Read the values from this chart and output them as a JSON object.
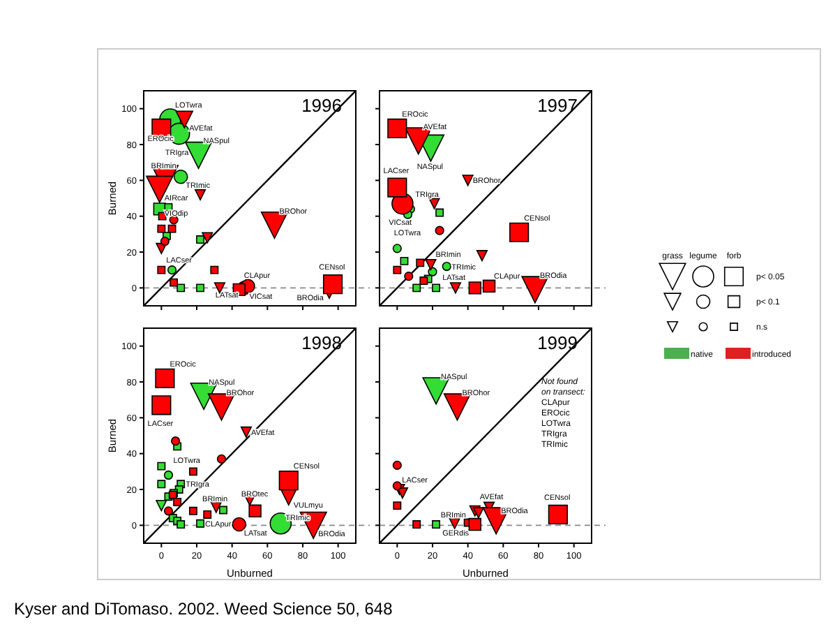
{
  "chart_data": [
    {
      "type": "bubble",
      "title": "1996",
      "ylabel": "Burned",
      "xlim": [
        -10,
        110
      ],
      "ylim": [
        -10,
        110
      ],
      "xticks": [
        0,
        20,
        40,
        60,
        80,
        100
      ],
      "yticks": [
        0,
        20,
        40,
        60,
        80,
        100
      ],
      "tick_labels": "y",
      "grid": false,
      "ref_lines": [
        {
          "axis": "y",
          "value": 0,
          "color": "#888888",
          "line_style": "dashed"
        }
      ],
      "series": [
        {
          "color": "#000000",
          "type": "line",
          "marker": "none",
          "x": [
            -10,
            110
          ],
          "values": [
            -10,
            110
          ]
        },
        {
          "color": "#33dd33",
          "marker": "triangle",
          "x": [
            21
          ],
          "values": [
            74
          ],
          "sizes": [
            1
          ]
        },
        {
          "color": "#33dd33",
          "marker": "circle",
          "x": [
            5,
            10,
            11,
            6
          ],
          "values": [
            94,
            86,
            62,
            10
          ],
          "sizes": [
            1,
            1,
            0.4,
            0.15
          ]
        },
        {
          "color": "#33dd33",
          "marker": "square",
          "x": [
            -1,
            4,
            3,
            22,
            11,
            22
          ],
          "values": [
            44,
            45,
            29,
            27,
            0,
            0
          ],
          "sizes": [
            0.4,
            0.15,
            0.15,
            0.15,
            0.15,
            0.15
          ]
        },
        {
          "color": "#ff0000",
          "marker": "triangle",
          "x": [
            13,
            2,
            -1,
            22,
            26,
            0,
            33,
            64,
            95
          ],
          "values": [
            94,
            61,
            55,
            52,
            28,
            22,
            0,
            35,
            -3
          ],
          "sizes": [
            0.4,
            1,
            1,
            0.15,
            0.15,
            0.15,
            0.15,
            1,
            0.15
          ]
        },
        {
          "color": "#ff0000",
          "marker": "circle",
          "x": [
            7,
            2,
            47,
            49
          ],
          "values": [
            38,
            26,
            0,
            1
          ],
          "sizes": [
            0.15,
            0.15,
            0.4,
            0.4
          ]
        },
        {
          "color": "#ff0000",
          "marker": "square",
          "x": [
            0,
            0.5,
            0,
            6,
            0,
            7,
            30,
            44,
            97
          ],
          "values": [
            89,
            40,
            33,
            33,
            10,
            3,
            10,
            -1,
            2
          ],
          "sizes": [
            1,
            0.15,
            0.15,
            0.15,
            0.15,
            0.15,
            0.15,
            0.4,
            1
          ]
        }
      ],
      "annotations": [
        {
          "text": "LOTwra",
          "x": 5,
          "y": 94
        },
        {
          "text": "AVEfat",
          "x": 13,
          "y": 94
        },
        {
          "text": "TRIgra",
          "x": 10,
          "y": 86
        },
        {
          "text": "EROcic",
          "x": 0,
          "y": 89
        },
        {
          "text": "NASpul",
          "x": 21,
          "y": 74
        },
        {
          "text": "BRImin",
          "x": 2,
          "y": 61
        },
        {
          "text": "TRImic",
          "x": 11,
          "y": 62
        },
        {
          "text": "AIRcar",
          "x": -1,
          "y": 55
        },
        {
          "text": "VIOdip",
          "x": -1,
          "y": 44
        },
        {
          "text": "LACser",
          "x": 0,
          "y": 10
        },
        {
          "text": "CLApur",
          "x": 44,
          "y": -1
        },
        {
          "text": "VICsat",
          "x": 47,
          "y": 0
        },
        {
          "text": "LATsat",
          "x": 49,
          "y": 1
        },
        {
          "text": "BROhor",
          "x": 64,
          "y": 35
        },
        {
          "text": "CENsol",
          "x": 97,
          "y": 2
        },
        {
          "text": "BROdia",
          "x": 95,
          "y": -3
        }
      ]
    },
    {
      "type": "bubble",
      "title": "1997",
      "xlim": [
        -10,
        110
      ],
      "ylim": [
        -10,
        110
      ],
      "xticks": [
        0,
        20,
        40,
        60,
        80,
        100
      ],
      "yticks": [
        0,
        20,
        40,
        60,
        80,
        100
      ],
      "tick_labels": false,
      "grid": false,
      "ref_lines": [
        {
          "axis": "y",
          "value": 0,
          "color": "#888888",
          "line_style": "dashed"
        }
      ],
      "series": [
        {
          "color": "#000000",
          "type": "line",
          "marker": "none",
          "x": [
            -10,
            110
          ],
          "values": [
            -10,
            110
          ]
        },
        {
          "color": "#33dd33",
          "marker": "triangle",
          "x": [
            19
          ],
          "values": [
            78
          ],
          "sizes": [
            1
          ]
        },
        {
          "color": "#33dd33",
          "marker": "circle",
          "x": [
            7.5,
            6,
            0,
            20,
            28
          ],
          "values": [
            44,
            41,
            22,
            9,
            12
          ],
          "sizes": [
            0.15,
            0.15,
            0.15,
            0.15,
            0.15
          ]
        },
        {
          "color": "#33dd33",
          "marker": "square",
          "x": [
            24,
            4,
            17.5,
            11,
            22
          ],
          "values": [
            42,
            15,
            5,
            0,
            0
          ],
          "sizes": [
            0.15,
            0.15,
            0.15,
            0.15,
            0.15
          ]
        },
        {
          "color": "#ff0000",
          "marker": "triangle",
          "x": [
            12,
            40,
            21,
            19,
            33,
            48,
            78
          ],
          "values": [
            82,
            60,
            47,
            13,
            0,
            18,
            -1
          ],
          "sizes": [
            1,
            0.15,
            0.15,
            0.15,
            0.15,
            0.15,
            1
          ]
        },
        {
          "color": "#ff0000",
          "marker": "circle",
          "x": [
            3,
            24,
            6.5
          ],
          "values": [
            47,
            32,
            6.5
          ],
          "sizes": [
            1,
            0.15,
            0.15
          ]
        },
        {
          "color": "#ff0000",
          "marker": "square",
          "x": [
            0,
            0,
            69,
            0,
            13,
            15,
            44,
            52
          ],
          "values": [
            89,
            56,
            31,
            10,
            14,
            4,
            0,
            1
          ],
          "sizes": [
            1,
            1,
            1,
            0.15,
            0.15,
            0.15,
            0.4,
            0.4
          ]
        }
      ],
      "annotations": [
        {
          "text": "EROcic",
          "x": 0,
          "y": 89
        },
        {
          "text": "AVEfat",
          "x": 12,
          "y": 82
        },
        {
          "text": "NASpul",
          "x": 19,
          "y": 78
        },
        {
          "text": "LACser",
          "x": 0,
          "y": 56
        },
        {
          "text": "BROhor",
          "x": 40,
          "y": 60
        },
        {
          "text": "TRIgra",
          "x": 7.5,
          "y": 44
        },
        {
          "text": "VICsat",
          "x": 3,
          "y": 47
        },
        {
          "text": "LOTwra",
          "x": 6,
          "y": 41
        },
        {
          "text": "CENsol",
          "x": 69,
          "y": 31
        },
        {
          "text": "BRImin",
          "x": 19,
          "y": 13
        },
        {
          "text": "TRImic",
          "x": 28,
          "y": 12
        },
        {
          "text": "LATsat",
          "x": 44,
          "y": 0
        },
        {
          "text": "CLApur",
          "x": 52,
          "y": 1
        },
        {
          "text": "BROdia",
          "x": 78,
          "y": -1
        }
      ]
    },
    {
      "type": "bubble",
      "title": "1998",
      "xlabel": "Unburned",
      "ylabel": "Burned",
      "xlim": [
        -10,
        110
      ],
      "ylim": [
        -10,
        110
      ],
      "xticks": [
        0,
        20,
        40,
        60,
        80,
        100
      ],
      "yticks": [
        0,
        20,
        40,
        60,
        80,
        100
      ],
      "grid": false,
      "ref_lines": [
        {
          "axis": "y",
          "value": 0,
          "color": "#888888",
          "line_style": "dashed"
        }
      ],
      "series": [
        {
          "color": "#000000",
          "type": "line",
          "marker": "none",
          "x": [
            -10,
            110
          ],
          "values": [
            -10,
            110
          ]
        },
        {
          "color": "#33dd33",
          "marker": "triangle",
          "x": [
            24,
            0
          ],
          "values": [
            72,
            11
          ],
          "sizes": [
            1,
            0.15
          ]
        },
        {
          "color": "#33dd33",
          "marker": "circle",
          "x": [
            4,
            67.5
          ],
          "values": [
            28,
            1
          ],
          "sizes": [
            0.15,
            1
          ]
        },
        {
          "color": "#33dd33",
          "marker": "square",
          "x": [
            9,
            0,
            0,
            11,
            10,
            7,
            4,
            6.5,
            9,
            11,
            22,
            35
          ],
          "values": [
            44,
            33,
            23,
            23,
            20,
            18,
            16,
            4,
            2.5,
            0.5,
            1,
            8.5
          ],
          "sizes": [
            0.15,
            0.15,
            0.15,
            0.15,
            0.15,
            0.15,
            0.15,
            0.15,
            0.15,
            0.15,
            0.15,
            0.15
          ]
        },
        {
          "color": "#ff0000",
          "marker": "triangle",
          "x": [
            34,
            48,
            31,
            50,
            72,
            86
          ],
          "values": [
            66,
            52,
            10,
            14,
            16,
            0
          ],
          "sizes": [
            1,
            0.15,
            0.15,
            0.15,
            0.4,
            1
          ]
        },
        {
          "color": "#ff0000",
          "marker": "circle",
          "x": [
            8,
            34,
            4,
            44
          ],
          "values": [
            47,
            37,
            8,
            0.5
          ],
          "sizes": [
            0.15,
            0.15,
            0.15,
            0.4
          ]
        },
        {
          "color": "#ff0000",
          "marker": "square",
          "x": [
            2,
            0,
            18,
            6.5,
            9,
            18,
            26,
            53,
            72
          ],
          "values": [
            82,
            67,
            30,
            17,
            13,
            8,
            6,
            8,
            25
          ],
          "sizes": [
            1,
            1,
            0.15,
            0.15,
            0.15,
            0.15,
            0.15,
            0.4,
            1
          ]
        }
      ],
      "annotations": [
        {
          "text": "EROcic",
          "x": 2,
          "y": 82
        },
        {
          "text": "LACser",
          "x": 0,
          "y": 67
        },
        {
          "text": "NASpul",
          "x": 24,
          "y": 72
        },
        {
          "text": "BROhor",
          "x": 34,
          "y": 66
        },
        {
          "text": "AVEfat",
          "x": 48,
          "y": 52
        },
        {
          "text": "LOTwra",
          "x": 4,
          "y": 28
        },
        {
          "text": "TRIgra",
          "x": 11,
          "y": 23
        },
        {
          "text": "CLApur",
          "x": 22,
          "y": 1
        },
        {
          "text": "BRImin",
          "x": 31,
          "y": 10
        },
        {
          "text": "LATsat",
          "x": 44,
          "y": 0.5
        },
        {
          "text": "BROtec",
          "x": 53,
          "y": 8
        },
        {
          "text": "CENsol",
          "x": 72,
          "y": 25
        },
        {
          "text": "VULmyu",
          "x": 72,
          "y": 16
        },
        {
          "text": "TRImic",
          "x": 67.5,
          "y": 1
        },
        {
          "text": "BROdia",
          "x": 86,
          "y": 0
        }
      ]
    },
    {
      "type": "bubble",
      "title": "1999",
      "xlabel": "Unburned",
      "xlim": [
        -10,
        110
      ],
      "ylim": [
        -10,
        110
      ],
      "xticks": [
        0,
        20,
        40,
        60,
        80,
        100
      ],
      "yticks": [
        0,
        20,
        40,
        60,
        80,
        100
      ],
      "tick_labels": "x",
      "grid": false,
      "ref_lines": [
        {
          "axis": "y",
          "value": 0,
          "color": "#888888",
          "line_style": "dashed"
        }
      ],
      "series": [
        {
          "color": "#000000",
          "type": "line",
          "marker": "none",
          "x": [
            -10,
            110
          ],
          "values": [
            -10,
            110
          ]
        },
        {
          "color": "#33dd33",
          "marker": "triangle",
          "x": [
            22
          ],
          "values": [
            75
          ],
          "sizes": [
            1
          ]
        },
        {
          "color": "#33dd33",
          "marker": "square",
          "x": [
            22
          ],
          "values": [
            0.5
          ],
          "sizes": [
            0.15
          ]
        },
        {
          "color": "#ff0000",
          "marker": "triangle",
          "x": [
            34,
            1.3,
            3,
            32.5,
            44,
            46,
            52,
            56
          ],
          "values": [
            66,
            20,
            18,
            1,
            8,
            7,
            10,
            2.5
          ],
          "sizes": [
            1,
            0.15,
            0.15,
            0.15,
            0.15,
            0.15,
            0.15,
            1
          ]
        },
        {
          "color": "#ff0000",
          "marker": "circle",
          "x": [
            0,
            0
          ],
          "values": [
            33.5,
            22
          ],
          "sizes": [
            0.15,
            0.15
          ]
        },
        {
          "color": "#ff0000",
          "marker": "square",
          "x": [
            0,
            11,
            40,
            44,
            91
          ],
          "values": [
            11,
            0.5,
            1.5,
            0.5,
            6
          ],
          "sizes": [
            0.15,
            0.15,
            0.15,
            0.4,
            1
          ]
        }
      ],
      "annotations": [
        {
          "text": "NASpul",
          "x": 22,
          "y": 75
        },
        {
          "text": "BROhor",
          "x": 34,
          "y": 66
        },
        {
          "text": "LACser",
          "x": 0,
          "y": 22
        },
        {
          "text": "BRImin",
          "x": 32.5,
          "y": 1
        },
        {
          "text": "AVEfat",
          "x": 44,
          "y": 8
        },
        {
          "text": "GERdis",
          "x": 44,
          "y": 0.5
        },
        {
          "text": "BROdia",
          "x": 56,
          "y": 2.5
        },
        {
          "text": "CENsol",
          "x": 91,
          "y": 6
        },
        "Not found\non transect:\nCLApur\nEROcic\nLOTwra\nTRIgra\nTRImic"
      ]
    },
    {
      "type": "other",
      "categories": [
        "native",
        "introduced"
      ],
      "colors": [
        "#4caf50",
        "#e02020"
      ],
      "y_categories": [
        "p< 0.05",
        "p< 0.1",
        "n.s"
      ],
      "annotations": [
        "grass",
        "legume",
        "forb",
        "Kyser and DiTomaso. 2002. Weed Science 50, 648"
      ]
    }
  ]
}
